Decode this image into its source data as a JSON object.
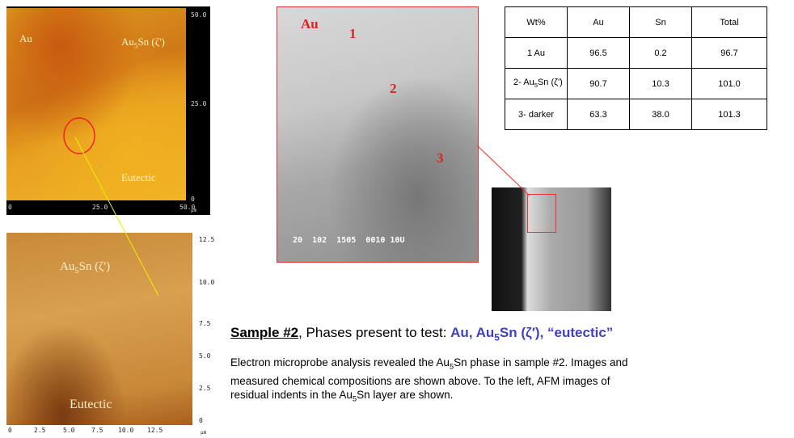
{
  "afm_top": {
    "label_au": "Au",
    "label_phase": {
      "base": "Au",
      "sub": "5",
      "rest": "Sn (ζ')"
    },
    "label_eutectic": "Eutectic",
    "right_ticks": [
      "50.0",
      "25.0",
      "0"
    ],
    "bottom_ticks": [
      "0",
      "25.0",
      "50.0"
    ],
    "unit": "µm"
  },
  "sem": {
    "label_au": "Au",
    "markers": [
      "1",
      "2",
      "3"
    ],
    "footer": "20  102  1505  0010 10U"
  },
  "afm_bottom": {
    "label_phase": {
      "base": "Au",
      "sub": "5",
      "rest": "Sn (ζ')"
    },
    "label_eutectic": "Eutectic",
    "right_ticks": [
      "12.5",
      "10.0",
      "7.5",
      "5.0",
      "2.5",
      "0"
    ],
    "bottom_ticks": [
      "0",
      "2.5",
      "5.0",
      "7.5",
      "10.0",
      "12.5"
    ],
    "unit": "µm"
  },
  "table": {
    "header": [
      "Wt%",
      "Au",
      "Sn",
      "Total"
    ],
    "rows": [
      [
        "1 Au",
        "96.5",
        "0.2",
        "96.7"
      ],
      [
        {
          "base": "2- Au",
          "sub": "5",
          "rest": "Sn (ζ')"
        },
        "90.7",
        "10.3",
        "101.0"
      ],
      [
        "3- darker",
        "63.3",
        "38.0",
        "101.3"
      ]
    ]
  },
  "caption": {
    "heading": "Sample #2",
    "heading_rest": ", Phases present to test: ",
    "phases": {
      "base": "Au, Au",
      "sub": "5",
      "rest": "Sn (ζ′), “eutectic”"
    },
    "body": [
      {
        "text": "Electron microprobe analysis revealed the Au"
      },
      {
        "sub": "5"
      },
      {
        "text": "Sn phase in sample #2. Images and measured chemical compositions are shown above. To the left, AFM images of residual indents in the Au"
      },
      {
        "sub": "5"
      },
      {
        "text": "Sn layer are shown."
      }
    ]
  }
}
